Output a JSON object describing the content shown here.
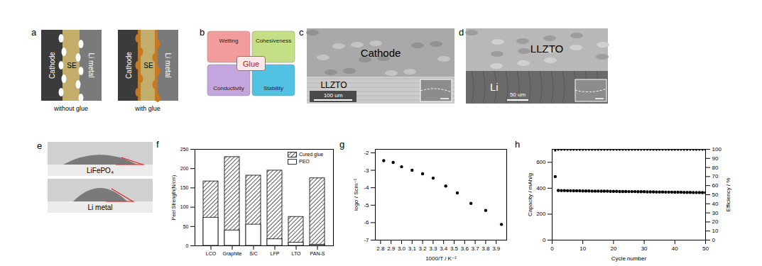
{
  "panels": {
    "a": {
      "label": "a",
      "diagrams": [
        {
          "layers": [
            "Cathode",
            "SE",
            "Li metal"
          ],
          "caption": "without glue"
        },
        {
          "layers": [
            "Cathode",
            "SE",
            "Li metal"
          ],
          "caption": "with glue"
        }
      ]
    },
    "b": {
      "label": "b",
      "center": "Glue",
      "quadrants": [
        "Wetting",
        "Cohesiveness",
        "Conductivity",
        "Stability"
      ]
    },
    "c": {
      "label": "c",
      "regions": [
        "Cathode",
        "LLZTO"
      ],
      "scale_bar": "100 um"
    },
    "d": {
      "label": "d",
      "regions": [
        "LLZTO",
        "Li"
      ],
      "scale_bar": "50 um"
    },
    "e": {
      "label": "e",
      "photos": [
        "LiFePO₄",
        "Li metal"
      ]
    }
  },
  "chart_data": [
    {
      "panel": "f",
      "type": "bar",
      "categories": [
        "LCO",
        "Graphite",
        "S/C",
        "LFP",
        "LTO",
        "PAN-S"
      ],
      "series": [
        {
          "name": "Cured glue",
          "color": "#333333",
          "values": [
            167,
            230,
            182,
            195,
            75,
            175
          ]
        },
        {
          "name": "PEO",
          "color": "#ffffff",
          "values": [
            73,
            40,
            55,
            17,
            8,
            3
          ]
        }
      ],
      "stacked": false,
      "y_label": "Peel Strength(N/cm)",
      "ylim": [
        0,
        250
      ],
      "yticks": [
        0,
        50,
        100,
        150,
        200,
        250
      ],
      "legend": "upper right",
      "grid": false
    },
    {
      "panel": "g",
      "type": "scatter",
      "x": [
        2.83,
        2.92,
        3,
        3.1,
        3.2,
        3.3,
        3.42,
        3.53,
        3.66,
        3.8,
        3.95
      ],
      "values": [
        -2.45,
        -2.55,
        -2.8,
        -3,
        -3.2,
        -3.45,
        -3.9,
        -4.3,
        -4.9,
        -5.3,
        -6.1
      ],
      "color": "#000000",
      "marker": "circle",
      "x_label": "1000/T / K⁻¹",
      "y_label": "logσ / Scm⁻¹",
      "xlim": [
        2.75,
        4.0
      ],
      "xticks": [
        2.8,
        2.9,
        {
          "value": 3,
          "label": "3.0"
        },
        3.1,
        3.2,
        3.3,
        3.4,
        3.5,
        3.6,
        3.7,
        3.8,
        3.9
      ],
      "ylim": [
        -7,
        -1.8
      ],
      "yticks": [
        -7,
        -6,
        -5,
        -4,
        -3,
        -2
      ],
      "grid": false
    },
    {
      "panel": "h",
      "type": "scatter",
      "x": [
        1,
        2,
        3,
        4,
        5,
        6,
        7,
        8,
        9,
        10,
        11,
        12,
        13,
        14,
        15,
        16,
        17,
        18,
        19,
        20,
        21,
        22,
        23,
        24,
        25,
        26,
        27,
        28,
        29,
        30,
        31,
        32,
        33,
        34,
        35,
        36,
        37,
        38,
        39,
        40,
        41,
        42,
        43,
        44,
        45,
        46,
        47,
        48,
        49,
        50
      ],
      "series": [
        {
          "color": "#000000",
          "marker": "circle",
          "values": [
            490,
            383,
            382,
            382,
            381,
            381,
            380,
            380,
            380,
            379,
            379,
            379,
            378,
            378,
            378,
            377,
            377,
            377,
            376,
            376,
            376,
            375,
            375,
            375,
            374,
            374,
            374,
            373,
            373,
            373,
            372,
            372,
            372,
            371,
            371,
            371,
            370,
            370,
            370,
            369,
            369,
            369,
            368,
            368,
            368,
            367,
            367,
            367,
            366,
            366
          ]
        },
        {
          "color": "#000000",
          "marker": "circle",
          "axis": "y2",
          "values": [
            98.8,
            99.6,
            99.7,
            99.7,
            99.6,
            99.7,
            99.7,
            99.6,
            99.6,
            99.7,
            99.7,
            99.6,
            99.7,
            99.7,
            99.6,
            99.6,
            99.7,
            99.7,
            99.6,
            99.7,
            99.7,
            99.6,
            99.6,
            99.7,
            99.7,
            99.6,
            99.7,
            99.7,
            99.6,
            99.6,
            99.7,
            99.7,
            99.6,
            99.7,
            99.7,
            99.6,
            99.6,
            99.7,
            99.7,
            99.6,
            99.7,
            99.7,
            99.6,
            99.6,
            99.7,
            99.7,
            99.6,
            99.7,
            99.7,
            99.6
          ]
        }
      ],
      "x_label": "Cycle number",
      "y_label": "Capacity / mAh/g",
      "y2_label": "Efficiency / %",
      "xlim": [
        0,
        50
      ],
      "xticks": [
        0,
        10,
        20,
        30,
        40,
        50
      ],
      "ylim": [
        0,
        700
      ],
      "yticks": [
        0,
        200,
        400,
        600
      ],
      "y2lim": [
        0,
        100
      ],
      "y2ticks": [
        0,
        10,
        20,
        30,
        40,
        50,
        60,
        70,
        80,
        90,
        100
      ],
      "grid": false
    }
  ]
}
